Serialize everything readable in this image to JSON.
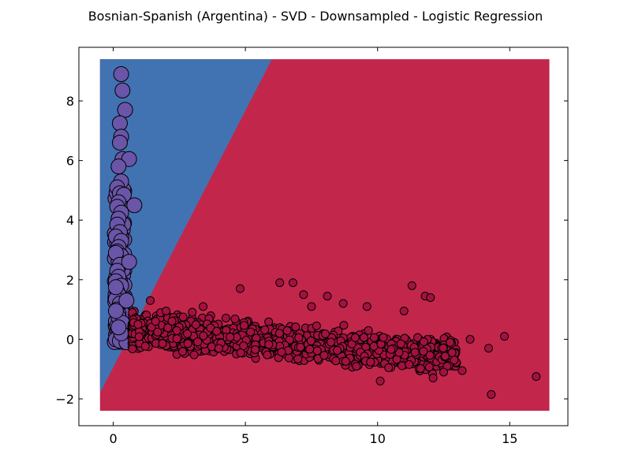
{
  "chart_data": {
    "type": "scatter",
    "title": "Bosnian-Spanish (Argentina) - SVD - Downsampled - Logistic Regression",
    "xlabel": "",
    "ylabel": "",
    "xlim": [
      -1.3,
      17.2
    ],
    "ylim": [
      -2.9,
      9.8
    ],
    "xticks": [
      0,
      5,
      10,
      15
    ],
    "yticks": [
      -2,
      0,
      2,
      4,
      6,
      8
    ],
    "grid": false,
    "background_region": {
      "x_range": [
        -0.5,
        16.5
      ],
      "y_range": [
        -2.4,
        9.4
      ],
      "boundary_line": [
        [
          -0.5,
          -1.8
        ],
        [
          6.0,
          9.4
        ]
      ]
    },
    "colors": {
      "class_a_region": "#4173b3",
      "class_b_region": "#c2274b",
      "class_a_points": "#6a55a8",
      "class_b_points": "#a3123f",
      "marker_edge": "#000000"
    },
    "series": [
      {
        "x": [
          0.3,
          0.35,
          0.45,
          0.25,
          0.3,
          0.25,
          0.35,
          0.6,
          0.2,
          0.3,
          0.15,
          0.25,
          0.4,
          0.2,
          0.15,
          0.3,
          0.2,
          0.8,
          0.15,
          0.25,
          0.1,
          0.3,
          0.2,
          0.15,
          0.3,
          0.2,
          0.1,
          0.25,
          0.6,
          0.15,
          0.2,
          0.1,
          0.3,
          0.15,
          0.2,
          0.1,
          0.25,
          0.15,
          0.5,
          0.2,
          0.1,
          0.3,
          0.15,
          0.2,
          0.1,
          0.25,
          0.15,
          0.2,
          0.35,
          0.1,
          0.65,
          0.5,
          0.3,
          0.2,
          0.1
        ],
        "y": [
          8.9,
          8.35,
          7.7,
          7.25,
          6.8,
          6.6,
          6.05,
          6.05,
          5.8,
          5.3,
          5.1,
          4.9,
          4.85,
          4.6,
          4.45,
          4.25,
          4.05,
          4.5,
          3.85,
          3.6,
          3.45,
          3.3,
          3.1,
          2.95,
          2.8,
          2.6,
          2.9,
          2.5,
          2.6,
          2.3,
          2.1,
          1.95,
          1.8,
          1.6,
          1.5,
          1.35,
          1.2,
          1.0,
          1.3,
          0.85,
          0.6,
          0.5,
          0.3,
          0.15,
          0.0,
          -0.05,
          0.45,
          0.75,
          0.55,
          1.75,
          0.0,
          -0.1,
          0.2,
          0.4,
          0.95
        ],
        "size": "large"
      },
      {
        "x": [
          1.4,
          6.3,
          6.8,
          4.8,
          11.3,
          7.2,
          8.1,
          11.8,
          12.0,
          14.3,
          16.0,
          12.5,
          13.2,
          14.8,
          10.1,
          12.1,
          13.5,
          14.2,
          12.9,
          11.0,
          9.6,
          8.7,
          7.5,
          3.4,
          2.0,
          1.6
        ],
        "y": [
          1.3,
          1.9,
          1.9,
          1.7,
          1.8,
          1.5,
          1.45,
          1.45,
          1.4,
          -1.85,
          -1.25,
          -1.1,
          -1.05,
          0.1,
          -1.4,
          -1.3,
          0.0,
          -0.3,
          -0.7,
          0.95,
          1.1,
          1.2,
          1.1,
          1.1,
          0.95,
          0.6
        ],
        "cluster": {
          "x_range": [
            0.7,
            13.0
          ],
          "y_center_start": 0.3,
          "y_center_end": -0.55,
          "y_spread": 0.75,
          "count": 1400
        },
        "size": "small"
      }
    ]
  }
}
